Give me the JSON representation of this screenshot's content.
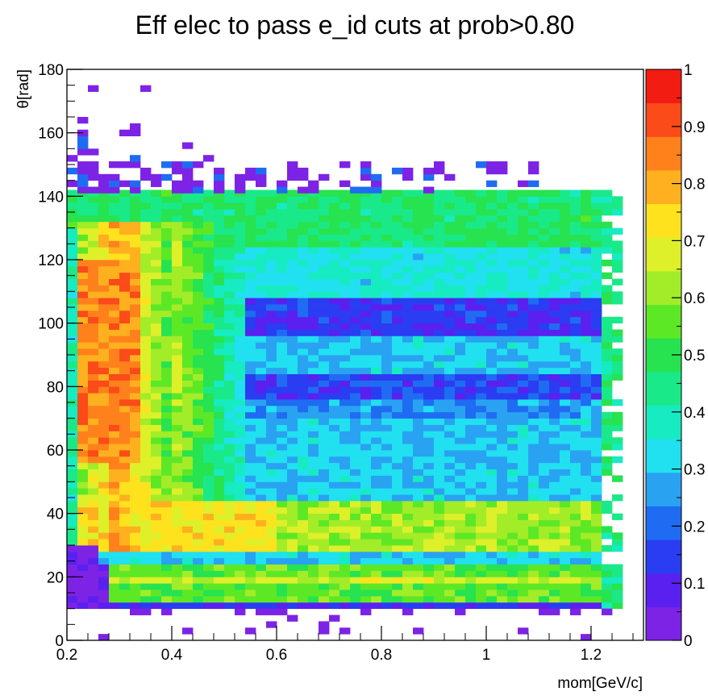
{
  "chart_data": {
    "type": "heatmap",
    "title": "Eff elec to pass e_id cuts at prob>0.80",
    "xlabel": "mom[GeV/c]",
    "ylabel": "θ[rad]",
    "xlim": [
      0.2,
      1.3
    ],
    "ylim": [
      0,
      180
    ],
    "x_ticks": [
      "0.2",
      "0.4",
      "0.6",
      "0.8",
      "1",
      "1.2"
    ],
    "y_ticks": [
      "0",
      "20",
      "40",
      "60",
      "80",
      "100",
      "120",
      "140",
      "160",
      "180"
    ],
    "zlim": [
      0,
      1
    ],
    "z_ticks": [
      "0",
      "0.1",
      "0.2",
      "0.3",
      "0.4",
      "0.5",
      "0.6",
      "0.7",
      "0.8",
      "0.9",
      "1"
    ],
    "x_bin_width_gev": 0.02,
    "y_bin_width_rad": 2,
    "x_bin_centers": [
      0.21,
      0.23,
      0.25,
      0.27,
      0.29,
      0.31,
      0.33,
      0.35,
      0.37,
      0.39,
      0.41,
      0.43,
      0.45,
      0.47,
      0.49,
      0.51,
      0.53,
      0.55,
      0.57,
      0.59,
      0.61,
      0.63,
      0.65,
      0.67,
      0.69,
      0.71,
      0.73,
      0.75,
      0.77,
      0.79,
      0.81,
      0.83,
      0.85,
      0.87,
      0.89,
      0.91,
      0.93,
      0.95,
      0.97,
      0.99,
      1.01,
      1.03,
      1.05,
      1.07,
      1.09,
      1.11,
      1.13,
      1.15,
      1.17,
      1.19,
      1.21,
      1.23,
      1.25
    ],
    "region_efficiencies": [
      {
        "theta": [
          10,
          12
        ],
        "mom": [
          0.25,
          1.2
        ],
        "eff": 0.1
      },
      {
        "theta": [
          12,
          24
        ],
        "mom": [
          0.3,
          1.2
        ],
        "eff": 0.55
      },
      {
        "theta": [
          18,
          20
        ],
        "mom": [
          0.75,
          0.9
        ],
        "eff": 0.68
      },
      {
        "theta": [
          24,
          28
        ],
        "mom": [
          0.3,
          1.2
        ],
        "eff": 0.3
      },
      {
        "theta": [
          28,
          45
        ],
        "mom": [
          0.5,
          1.2
        ],
        "eff": 0.6
      },
      {
        "theta": [
          40,
          120
        ],
        "mom": [
          0.2,
          0.4
        ],
        "eff": 0.8
      },
      {
        "theta": [
          45,
          70
        ],
        "mom": [
          0.5,
          1.2
        ],
        "eff": 0.3
      },
      {
        "theta": [
          72,
          84
        ],
        "mom": [
          0.6,
          1.2
        ],
        "eff": 0.15
      },
      {
        "theta": [
          86,
          96
        ],
        "mom": [
          0.6,
          1.2
        ],
        "eff": 0.3
      },
      {
        "theta": [
          96,
          108
        ],
        "mom": [
          0.6,
          1.2
        ],
        "eff": 0.12
      },
      {
        "theta": [
          110,
          140
        ],
        "mom": [
          0.5,
          1.2
        ],
        "eff": 0.45
      },
      {
        "theta": [
          140,
          160
        ],
        "mom": [
          0.2,
          1.2
        ],
        "eff": 0.05
      }
    ],
    "colorbar": {
      "colors": [
        "#7c23e6",
        "#5a20f0",
        "#2a3df2",
        "#1f6cf2",
        "#2aa2f2",
        "#21e0f0",
        "#17ebc2",
        "#1ae98a",
        "#27e34f",
        "#5de826",
        "#a3ec28",
        "#ddf029",
        "#ffe21e",
        "#ffb01f",
        "#ff811c",
        "#fa4b18",
        "#f21c12"
      ]
    }
  }
}
